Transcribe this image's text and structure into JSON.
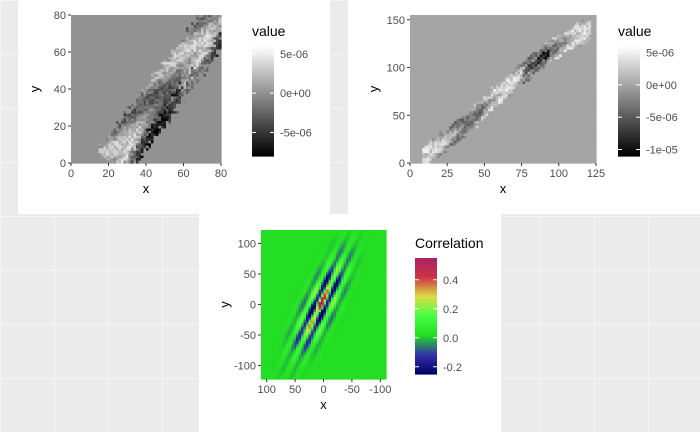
{
  "chart_data": [
    {
      "type": "heatmap",
      "xlabel": "x",
      "ylabel": "y",
      "xlim": [
        0,
        80
      ],
      "ylim": [
        0,
        80
      ],
      "x_ticks": [
        0,
        20,
        40,
        60,
        80
      ],
      "y_ticks": [
        0,
        20,
        40,
        60,
        80
      ],
      "x_tick_labels": [
        "0",
        "20",
        "40",
        "60",
        "80"
      ],
      "y_tick_labels": [
        "0",
        "20",
        "40",
        "60",
        "80"
      ],
      "background_value": 0,
      "band": {
        "start": [
          22,
          0
        ],
        "end": [
          80,
          78
        ],
        "width": 20
      },
      "legend": {
        "title": "value",
        "placement": "right",
        "range": [
          -8e-06,
          6e-06
        ],
        "breaks": [
          5e-06,
          0,
          -5e-06
        ],
        "labels": [
          "5e-06",
          "0e+00",
          "-5e-06"
        ],
        "colors": [
          "#000000",
          "#ffffff"
        ]
      }
    },
    {
      "type": "heatmap",
      "xlabel": "x",
      "ylabel": "y",
      "xlim": [
        0,
        125
      ],
      "ylim": [
        0,
        155
      ],
      "x_ticks": [
        0,
        25,
        50,
        75,
        100,
        125
      ],
      "y_ticks": [
        0,
        50,
        100,
        150
      ],
      "x_tick_labels": [
        "0",
        "25",
        "50",
        "75",
        "100",
        "125"
      ],
      "y_tick_labels": [
        "0",
        "50",
        "100",
        "150"
      ],
      "background_value": 0,
      "band": {
        "start": [
          8,
          5
        ],
        "end": [
          122,
          140
        ],
        "width": 22,
        "curved": true
      },
      "legend": {
        "title": "value",
        "placement": "right",
        "range": [
          -1.1e-05,
          6e-06
        ],
        "breaks": [
          5e-06,
          0,
          -5e-06,
          -1e-05
        ],
        "labels": [
          "5e-06",
          "0e+00",
          "-5e-06",
          "-1e-05"
        ],
        "colors": [
          "#000000",
          "#ffffff"
        ]
      }
    },
    {
      "type": "heatmap",
      "xlabel": "x",
      "ylabel": "y",
      "xlim": [
        110,
        -110
      ],
      "ylim": [
        -122,
        122
      ],
      "x_reversed": true,
      "x_ticks": [
        100,
        50,
        0,
        -50,
        -100
      ],
      "y_ticks": [
        100,
        50,
        0,
        -50,
        -100
      ],
      "x_tick_labels": [
        "100",
        "50",
        "0",
        "-50",
        "-100"
      ],
      "y_tick_labels": [
        "100",
        "50",
        "0",
        "-50",
        "-100"
      ],
      "background_value": 0.02,
      "peak": {
        "x": 5,
        "y": 0,
        "value": 0.55
      },
      "legend": {
        "title": "Correlation",
        "placement": "right",
        "range": [
          -0.25,
          0.55
        ],
        "breaks": [
          0.4,
          0.2,
          0.0,
          -0.2
        ],
        "labels": [
          "0.4",
          "0.2",
          "0.0",
          "-0.2"
        ],
        "colors": [
          "#000066",
          "#3333aa",
          "#22dd22",
          "#44ff44",
          "#dddd44",
          "#cc3344",
          "#aa2266"
        ]
      }
    }
  ]
}
